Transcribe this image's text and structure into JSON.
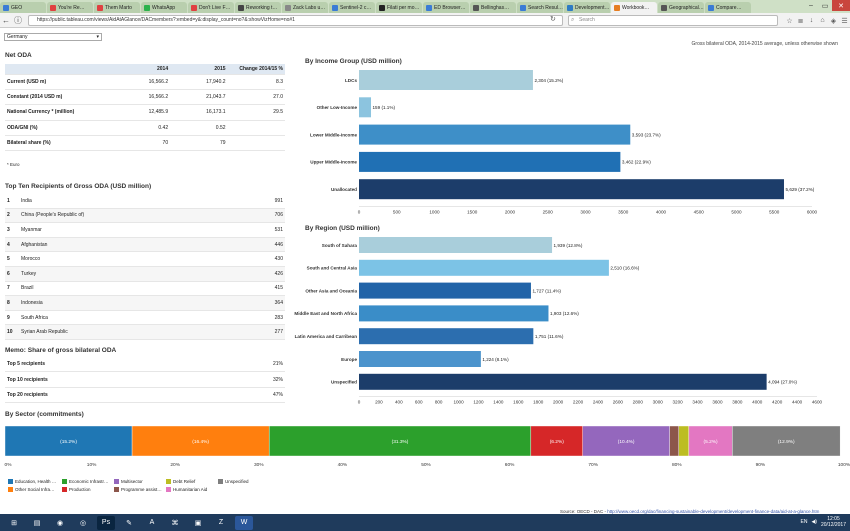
{
  "browser": {
    "tabs": [
      {
        "label": "GEO",
        "color": "#3a7bd5"
      },
      {
        "label": "You're Re…",
        "color": "#e04040"
      },
      {
        "label": "Them Marto",
        "color": "#e04040"
      },
      {
        "label": "WhatsApp",
        "color": "#2bb24c"
      },
      {
        "label": "Don't Live F…",
        "color": "#e04040"
      },
      {
        "label": "Reworking t…",
        "color": "#444444"
      },
      {
        "label": "Zack Labs u…",
        "color": "#888888"
      },
      {
        "label": "Sentinel-2 c…",
        "color": "#3a7bd5"
      },
      {
        "label": "Filati per mo…",
        "color": "#222222"
      },
      {
        "label": "ED Browser…",
        "color": "#3a7bd5"
      },
      {
        "label": "Bellinghas…",
        "color": "#555555"
      },
      {
        "label": "Search Resul…",
        "color": "#3a7bd5"
      },
      {
        "label": "Development…",
        "color": "#2e7bc4"
      },
      {
        "label": "Workbook…",
        "color": "#e67e22",
        "active": true
      },
      {
        "label": "Geographical…",
        "color": "#555555"
      },
      {
        "label": "Compare…",
        "color": "#3a7bd5"
      }
    ],
    "url": "https://public.tableau.com/views/AidAtAGlance/DACmembers?:embed=y&:display_count=no?&:showVizHome=no#1",
    "search_placeholder": "Search"
  },
  "filter": {
    "country": "Germany"
  },
  "note": "Gross bilateral ODA, 2014-2015 average, unless otherwise shown",
  "net_oda": {
    "title": "Net ODA",
    "headers": [
      "",
      "2014",
      "2015",
      "Change 2014/15 %"
    ],
    "rows": [
      [
        "Current (USD m)",
        "16,566.2",
        "17,940.2",
        "8.3"
      ],
      [
        "Constant (2014 USD m)",
        "16,566.2",
        "21,043.7",
        "27.0"
      ],
      [
        "National Currency * (million)",
        "12,485.9",
        "16,173.1",
        "29.5"
      ],
      [
        "ODA/GNI (%)",
        "0.42",
        "0.52",
        ""
      ],
      [
        "Bilateral share (%)",
        "70",
        "79",
        ""
      ]
    ],
    "footnote": "* Euro"
  },
  "top_ten": {
    "title": "Top Ten Recipients of Gross ODA (USD million)",
    "rows": [
      {
        "rank": "1",
        "name": "India",
        "value": "991"
      },
      {
        "rank": "2",
        "name": "China (People's Republic of)",
        "value": "706"
      },
      {
        "rank": "3",
        "name": "Myanmar",
        "value": "531"
      },
      {
        "rank": "4",
        "name": "Afghanistan",
        "value": "446"
      },
      {
        "rank": "5",
        "name": "Morocco",
        "value": "430"
      },
      {
        "rank": "6",
        "name": "Turkey",
        "value": "426"
      },
      {
        "rank": "7",
        "name": "Brazil",
        "value": "415"
      },
      {
        "rank": "8",
        "name": "Indonesia",
        "value": "364"
      },
      {
        "rank": "9",
        "name": "South Africa",
        "value": "283"
      },
      {
        "rank": "10",
        "name": "Syrian Arab Republic",
        "value": "277"
      }
    ]
  },
  "memo": {
    "title": "Memo: Share of gross bilateral ODA",
    "rows": [
      {
        "name": "Top 5 recipients",
        "value": "21%"
      },
      {
        "name": "Top 10 recipients",
        "value": "32%"
      },
      {
        "name": "Top 20 recipients",
        "value": "47%"
      }
    ]
  },
  "chart_data": [
    {
      "type": "bar",
      "orientation": "horizontal",
      "title": "By Income Group (USD million)",
      "categories": [
        "LDCs",
        "Other Low-Income",
        "Lower Middle-Income",
        "Upper Middle-Income",
        "Unallocated"
      ],
      "values": [
        2304,
        159,
        3593,
        3462,
        5629
      ],
      "labels": [
        "2,304 (15.2%)",
        "159 (1.1%)",
        "3,593 (23.7%)",
        "3,462 (22.9%)",
        "5,629 (37.2%)"
      ],
      "colors": [
        "#a9cedb",
        "#8cc4df",
        "#3e8fc8",
        "#2070b4",
        "#1c3d6a"
      ],
      "xlim": [
        0,
        6000
      ],
      "ticks": [
        0,
        500,
        1000,
        1500,
        2000,
        2500,
        3000,
        3500,
        4000,
        4500,
        5000,
        5500,
        6000
      ],
      "grid": false
    },
    {
      "type": "bar",
      "orientation": "horizontal",
      "title": "By Region (USD million)",
      "categories": [
        "South of Sahara",
        "South and Central Asia",
        "Other Asia and Oceania",
        "Middle East and North Africa",
        "Latin America and Carribean",
        "Europe",
        "Unspecified"
      ],
      "values": [
        1939,
        2510,
        1727,
        1903,
        1751,
        1224,
        4094
      ],
      "labels": [
        "1,939 (12.8%)",
        "2,510 (16.6%)",
        "1,727 (11.4%)",
        "1,903 (12.6%)",
        "1,751 (11.6%)",
        "1,224 (8.1%)",
        "4,094 (27.0%)"
      ],
      "colors": [
        "#a9cedb",
        "#7cc3e6",
        "#2264a8",
        "#3a8dc8",
        "#2c6eaf",
        "#4b93cc",
        "#1c3d6a"
      ],
      "xlim": [
        0,
        4600
      ],
      "ticks": [
        0,
        200,
        400,
        600,
        800,
        1000,
        1200,
        1400,
        1600,
        1800,
        2000,
        2200,
        2400,
        2600,
        2800,
        3000,
        3200,
        3400,
        3600,
        3800,
        4000,
        4200,
        4400,
        4600
      ],
      "grid": false
    },
    {
      "type": "bar",
      "orientation": "stacked-horizontal",
      "title": "By Sector (commitments)",
      "segments": [
        {
          "name": "Education, Health …",
          "value": 15.2,
          "label": "(15.2%)",
          "color": "#1f77b4"
        },
        {
          "name": "Other Social Infra…",
          "value": 16.4,
          "label": "(16.4%)",
          "color": "#ff7f0e"
        },
        {
          "name": "Economic Infrastr…",
          "value": 31.3,
          "label": "(31.3%)",
          "color": "#2ca02c"
        },
        {
          "name": "Production",
          "value": 6.2,
          "label": "(6.2%)",
          "color": "#d62728"
        },
        {
          "name": "Multisector",
          "value": 10.4,
          "label": "(10.4%)",
          "color": "#9467bd"
        },
        {
          "name": "Programme assist…",
          "value": 1.1,
          "label": "",
          "color": "#8c564b"
        },
        {
          "name": "Debt Relief",
          "value": 1.2,
          "label": "",
          "color": "#bcbd22"
        },
        {
          "name": "Humanitarian Aid",
          "value": 5.2,
          "label": "(5.2%)",
          "color": "#e377c2"
        },
        {
          "name": "Unspecified",
          "value": 12.9,
          "label": "(12.9%)",
          "color": "#7f7f7f"
        }
      ],
      "xlim": [
        0,
        100
      ],
      "ticks": [
        "0%",
        "10%",
        "20%",
        "30%",
        "40%",
        "50%",
        "60%",
        "70%",
        "80%",
        "90%",
        "100%"
      ],
      "legend_position": "bottom-left"
    }
  ],
  "source": {
    "prefix": "Source: OECD - DAC - ",
    "link": "http://www.oecd.org/dac/financing-sustainable-development/development-finance-data/aid-at-a-glance.htm"
  },
  "taskbar": {
    "apps": [
      "start-icon",
      "explorer-icon",
      "firefox-icon",
      "chrome-icon",
      "photoshop-icon",
      "paint-icon",
      "app-store-icon",
      "network-icon",
      "terminal-icon",
      "filezilla-icon",
      "word-icon"
    ],
    "lang": "EN",
    "time": "12:05",
    "date": "20/12/2017"
  }
}
